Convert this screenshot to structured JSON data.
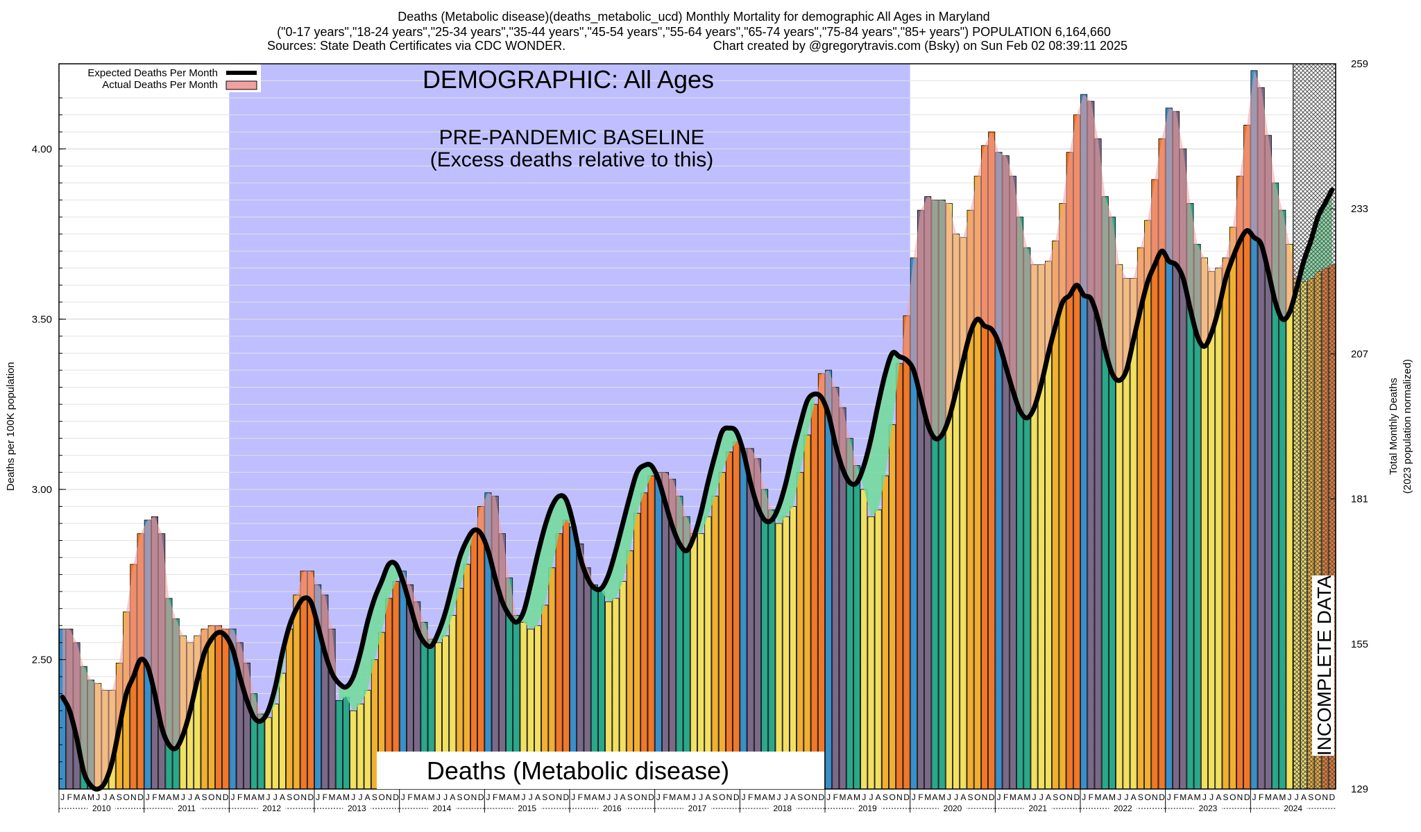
{
  "header": {
    "line1": "Deaths (Metabolic disease)(deaths_metabolic_ucd) Monthly Mortality for demographic All Ages in Maryland",
    "line2": "(\"0-17 years\",\"18-24 years\",\"25-34 years\",\"35-44 years\",\"45-54 years\",\"55-64 years\",\"65-74 years\",\"75-84 years\",\"85+ years\") POPULATION 6,164,660",
    "line3_left": "Sources: State Death Certificates via CDC WONDER.",
    "line3_right": "Chart created by @gregorytravis.com (Bsky) on Sun Feb 02 08:39:11 2025"
  },
  "annotations": {
    "demographic": "DEMOGRAPHIC: All Ages",
    "baseline_line1": "PRE-PANDEMIC BASELINE",
    "baseline_line2": "(Excess deaths relative to this)",
    "bottom_title": "Deaths (Metabolic disease)",
    "incomplete": "INCOMPLETE DATA"
  },
  "legend": {
    "expected": "Expected Deaths Per Month",
    "actual": "Actual Deaths Per Month"
  },
  "axes": {
    "ylabel_left": "Deaths per 100K population",
    "ylabel_right_line1": "Total Monthly Deaths",
    "ylabel_right_line2": "(2023 population normalized)"
  },
  "colors": {
    "baseline_region": "#bfbfff",
    "incomplete_hatch": "#9a9a9a",
    "expected_line": "#000000",
    "excess_fill": "#f0a0a0",
    "deficit_fill": "#70dc98",
    "winter": "#3a8fc9",
    "late_winter": "#7a6a88",
    "spring": "#2aa88a",
    "summer": "#f2e060",
    "early_fall": "#f2b030",
    "late_fall": "#f07828"
  },
  "chart_data": {
    "type": "bar",
    "ylim": [
      2.12,
      4.25
    ],
    "y_ticks": [
      2.5,
      3.0,
      3.5,
      4.0
    ],
    "y_tick_labels": [
      "2.50",
      "3.00",
      "3.50",
      "4.00"
    ],
    "y2_ticks": [
      129,
      155,
      181,
      207,
      233,
      259
    ],
    "y2_tick_labels": [
      "129",
      "155",
      "181",
      "207",
      "233",
      "259"
    ],
    "month_letters": [
      "J",
      "F",
      "M",
      "A",
      "M",
      "J",
      "J",
      "A",
      "S",
      "O",
      "N",
      "D"
    ],
    "years": [
      "2010",
      "2011",
      "2012",
      "2013",
      "2014",
      "2015",
      "2016",
      "2017",
      "2018",
      "2019",
      "2020",
      "2021",
      "2022",
      "2023",
      "2024"
    ],
    "baseline_region": {
      "start": "2012-01",
      "end": "2019-12"
    },
    "incomplete_region": {
      "start": "2024-07",
      "end": "2024-12"
    },
    "series": [
      {
        "name": "Actual Deaths Per Month",
        "start": "2010-01",
        "values": [
          2.59,
          2.59,
          2.55,
          2.48,
          2.44,
          2.43,
          2.41,
          2.41,
          2.49,
          2.64,
          2.78,
          2.87,
          2.91,
          2.92,
          2.87,
          2.68,
          2.62,
          2.57,
          2.55,
          2.57,
          2.59,
          2.6,
          2.6,
          2.59,
          2.59,
          2.55,
          2.49,
          2.4,
          2.34,
          2.33,
          2.37,
          2.46,
          2.59,
          2.69,
          2.76,
          2.76,
          2.72,
          2.69,
          2.59,
          2.38,
          2.39,
          2.35,
          2.37,
          2.41,
          2.5,
          2.58,
          2.68,
          2.73,
          2.76,
          2.72,
          2.67,
          2.61,
          2.56,
          2.55,
          2.57,
          2.63,
          2.71,
          2.78,
          2.88,
          2.95,
          2.99,
          2.98,
          2.87,
          2.74,
          2.63,
          2.61,
          2.59,
          2.6,
          2.66,
          2.77,
          2.87,
          2.91,
          2.89,
          2.84,
          2.77,
          2.72,
          2.7,
          2.67,
          2.68,
          2.73,
          2.82,
          2.93,
          2.99,
          3.04,
          3.05,
          3.05,
          3.03,
          2.98,
          2.92,
          2.87,
          2.87,
          2.92,
          2.98,
          3.05,
          3.11,
          3.14,
          3.12,
          3.12,
          3.09,
          3.0,
          2.94,
          2.9,
          2.92,
          2.95,
          3.05,
          3.16,
          3.25,
          3.34,
          3.35,
          3.3,
          3.24,
          3.15,
          3.07,
          3.0,
          2.92,
          2.94,
          3.04,
          3.19,
          3.37,
          3.51,
          3.68,
          3.82,
          3.86,
          3.85,
          3.85,
          3.84,
          3.75,
          3.74,
          3.82,
          3.92,
          4.01,
          4.05,
          3.99,
          3.98,
          3.92,
          3.8,
          3.71,
          3.66,
          3.66,
          3.67,
          3.73,
          3.84,
          3.99,
          4.1,
          4.16,
          4.14,
          4.03,
          3.86,
          3.8,
          3.66,
          3.62,
          3.62,
          3.71,
          3.79,
          3.91,
          4.03,
          4.12,
          4.11,
          4.0,
          3.84,
          3.72,
          3.68,
          3.64,
          3.65,
          3.68,
          3.77,
          3.92,
          4.07,
          4.23,
          4.18,
          4.04,
          3.9,
          3.82,
          3.72,
          3.62,
          3.61,
          3.62,
          3.64,
          3.65,
          3.66
        ]
      },
      {
        "name": "Expected Deaths Per Month",
        "start": "2010-01",
        "values": [
          2.39,
          2.35,
          2.27,
          2.17,
          2.13,
          2.12,
          2.14,
          2.2,
          2.3,
          2.4,
          2.45,
          2.5,
          2.48,
          2.4,
          2.3,
          2.25,
          2.24,
          2.28,
          2.35,
          2.44,
          2.52,
          2.56,
          2.58,
          2.57,
          2.53,
          2.45,
          2.38,
          2.33,
          2.32,
          2.35,
          2.42,
          2.52,
          2.6,
          2.65,
          2.68,
          2.67,
          2.6,
          2.52,
          2.46,
          2.43,
          2.42,
          2.45,
          2.52,
          2.61,
          2.68,
          2.73,
          2.78,
          2.78,
          2.73,
          2.66,
          2.59,
          2.55,
          2.54,
          2.58,
          2.64,
          2.72,
          2.8,
          2.85,
          2.88,
          2.87,
          2.82,
          2.74,
          2.67,
          2.63,
          2.61,
          2.64,
          2.72,
          2.81,
          2.89,
          2.95,
          2.98,
          2.97,
          2.9,
          2.8,
          2.74,
          2.71,
          2.71,
          2.75,
          2.82,
          2.9,
          2.98,
          3.05,
          3.07,
          3.07,
          3.03,
          2.96,
          2.89,
          2.84,
          2.82,
          2.86,
          2.93,
          3.02,
          3.1,
          3.17,
          3.18,
          3.17,
          3.11,
          3.02,
          2.95,
          2.91,
          2.91,
          2.95,
          3.02,
          3.11,
          3.19,
          3.26,
          3.28,
          3.27,
          3.22,
          3.13,
          3.06,
          3.02,
          3.02,
          3.07,
          3.15,
          3.25,
          3.34,
          3.4,
          3.39,
          3.38,
          3.35,
          3.27,
          3.19,
          3.15,
          3.16,
          3.21,
          3.29,
          3.38,
          3.46,
          3.5,
          3.48,
          3.47,
          3.43,
          3.36,
          3.29,
          3.23,
          3.21,
          3.24,
          3.31,
          3.4,
          3.48,
          3.55,
          3.57,
          3.6,
          3.57,
          3.56,
          3.5,
          3.41,
          3.34,
          3.32,
          3.35,
          3.44,
          3.53,
          3.61,
          3.66,
          3.7,
          3.67,
          3.66,
          3.62,
          3.53,
          3.45,
          3.42,
          3.46,
          3.53,
          3.62,
          3.68,
          3.73,
          3.76,
          3.74,
          3.72,
          3.64,
          3.55,
          3.5,
          3.52,
          3.59,
          3.67,
          3.73,
          3.8,
          3.84,
          3.88
        ]
      }
    ]
  }
}
